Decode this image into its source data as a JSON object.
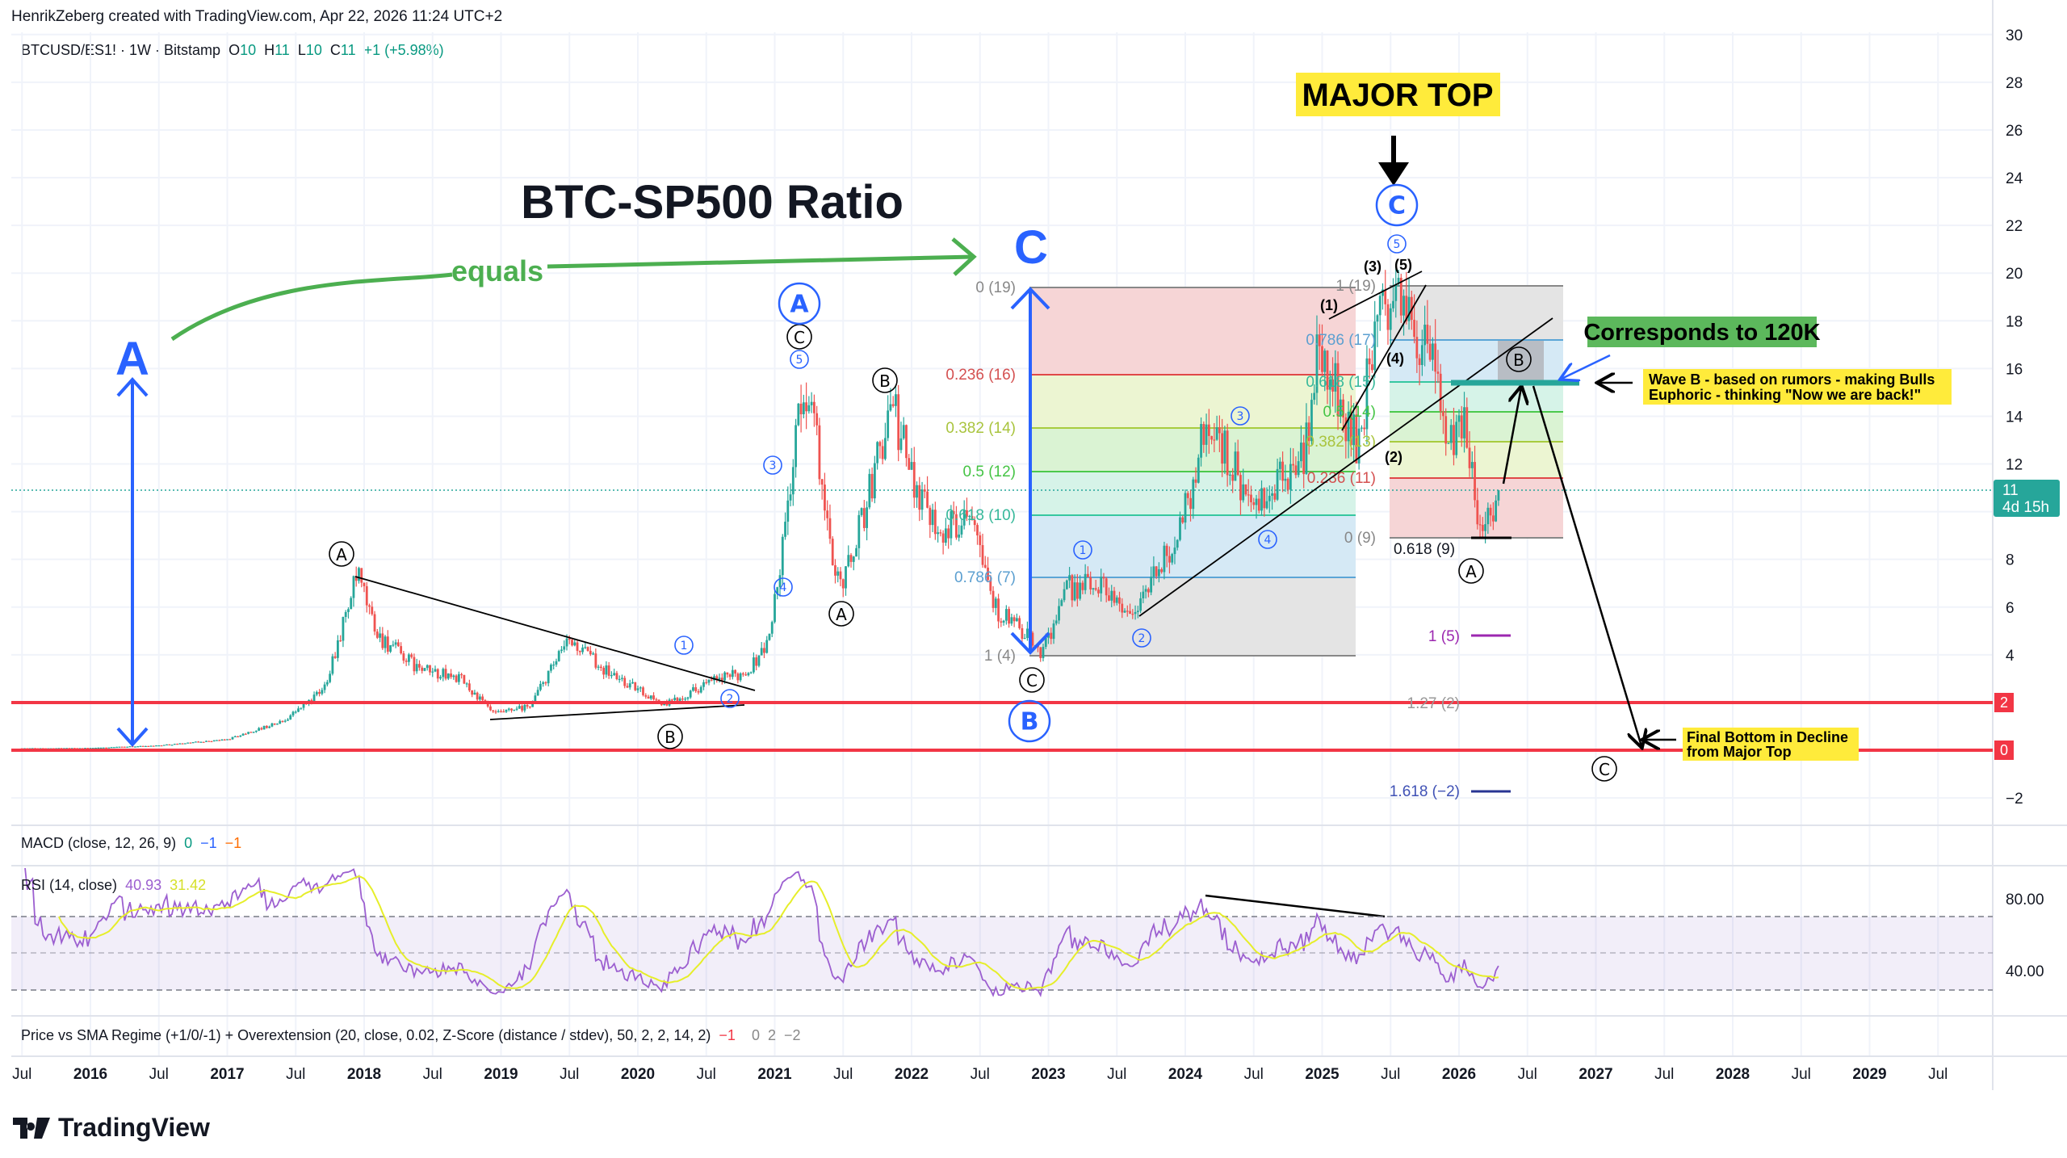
{
  "header": {
    "attribution": "HenrikZeberg created with TradingView.com, Apr 22, 2026 11:24 UTC+2"
  },
  "legend": {
    "symbol": "BTCUSD/ES1! · 1W · Bitstamp",
    "o_label": "O",
    "o": "10",
    "h_label": "H",
    "h": "11",
    "l_label": "L",
    "l": "10",
    "c_label": "C",
    "c": "11",
    "change": "+1 (+5.98%)"
  },
  "annotations": {
    "title": "BTC-SP500 Ratio",
    "equals": "equals",
    "big_a": "A",
    "big_c": "C",
    "major_top": "MAJOR TOP",
    "corresponds": "Corresponds to 120K",
    "wave_b_note_1": "Wave B - based on rumors - making Bulls",
    "wave_b_note_2": "Euphoric - thinking \"Now we are back!\"",
    "final_bottom_1": "Final Bottom in Decline",
    "final_bottom_2": "from Major Top",
    "sub_waves": [
      "(5)",
      "(3)",
      "(1)",
      "(4)",
      "(2)"
    ]
  },
  "waves": [
    "A",
    "B",
    "1",
    "2",
    "3",
    "4",
    "5",
    "C",
    "A",
    "B",
    "A",
    "C",
    "B",
    "1",
    "2",
    "3",
    "4",
    "C",
    "5",
    "B",
    "A",
    "C"
  ],
  "fib_left": [
    "0 (19)",
    "0.236 (16)",
    "0.382 (14)",
    "0.5 (12)",
    "0.618 (10)",
    "0.786 (7)",
    "1 (4)"
  ],
  "fib_right": [
    "1 (19)",
    "0.786 (17)",
    "0.618 (15)",
    "0.5 (14)",
    "0.382 (13)",
    "0.236 (11)",
    "0 (9)",
    "0.618 (9)"
  ],
  "extensions": [
    "1 (5)",
    "1.27 (2)",
    "1.618 (−2)"
  ],
  "price_axis": {
    "ticks": [
      "30",
      "28",
      "26",
      "24",
      "22",
      "20",
      "18",
      "16",
      "14",
      "12",
      "8",
      "6",
      "4",
      "−2"
    ],
    "tags": [
      "2",
      "0"
    ],
    "last_price": "11",
    "countdown": "4d 15h"
  },
  "time_axis": [
    "Jul",
    "2016",
    "Jul",
    "2017",
    "Jul",
    "2018",
    "Jul",
    "2019",
    "Jul",
    "2020",
    "Jul",
    "2021",
    "Jul",
    "2022",
    "Jul",
    "2023",
    "Jul",
    "2024",
    "Jul",
    "2025",
    "Jul",
    "2026",
    "Jul",
    "2027",
    "Jul",
    "2028",
    "Jul",
    "2029",
    "Jul"
  ],
  "macd": {
    "title": "MACD (close, 12, 26, 9)",
    "v1": "0",
    "v2": "−1",
    "v3": "−1"
  },
  "rsi": {
    "title": "RSI (14, close)",
    "value": "40.93",
    "sma": "31.42",
    "ticks": [
      "80.00",
      "40.00"
    ]
  },
  "regime": {
    "title": "Price vs SMA Regime (+1/0/-1) + Overextension (20, close, 0.02, Z-Score (distance / stdev), 50, 2, 2, 14, 2)",
    "v1": "−1",
    "v2": "0",
    "v3": "2",
    "v4": "−2"
  },
  "logo": {
    "text": "TradingView"
  },
  "colors": {
    "up": "#26a69a",
    "down": "#ef5350",
    "blue": "#2962ff",
    "green_note": "#5cb85c",
    "yellow_note": "#ffeb3b",
    "support": "#f23645",
    "rsi": "#9c5fd0",
    "rsi_sma": "#e6ee2a"
  },
  "chart_data": {
    "type": "candlestick",
    "title": "BTC-SP500 Ratio",
    "timeframe": "1W",
    "x_unit": "year",
    "ylim": [
      -3,
      30
    ],
    "horizontal_levels": [
      2,
      0
    ],
    "current_value": 11,
    "price_path": [
      [
        2015.5,
        0.08
      ],
      [
        2016.0,
        0.09
      ],
      [
        2016.5,
        0.2
      ],
      [
        2017.0,
        0.45
      ],
      [
        2017.4,
        1.2
      ],
      [
        2017.7,
        2.5
      ],
      [
        2017.95,
        7.3
      ],
      [
        2018.1,
        4.8
      ],
      [
        2018.4,
        3.4
      ],
      [
        2018.7,
        3.0
      ],
      [
        2018.95,
        1.5
      ],
      [
        2019.2,
        1.8
      ],
      [
        2019.5,
        4.6
      ],
      [
        2019.8,
        3.2
      ],
      [
        2020.2,
        1.9
      ],
      [
        2020.5,
        2.8
      ],
      [
        2020.8,
        3.3
      ],
      [
        2020.95,
        4.5
      ],
      [
        2021.05,
        8
      ],
      [
        2021.15,
        13
      ],
      [
        2021.25,
        15.5
      ],
      [
        2021.4,
        8.5
      ],
      [
        2021.5,
        7
      ],
      [
        2021.7,
        11
      ],
      [
        2021.85,
        14.6
      ],
      [
        2022.0,
        11.5
      ],
      [
        2022.25,
        9
      ],
      [
        2022.45,
        10.5
      ],
      [
        2022.6,
        6
      ],
      [
        2022.8,
        5
      ],
      [
        2022.95,
        4.1
      ],
      [
        2023.15,
        6.8
      ],
      [
        2023.4,
        7
      ],
      [
        2023.6,
        5.6
      ],
      [
        2023.9,
        8.5
      ],
      [
        2024.05,
        11
      ],
      [
        2024.15,
        13.8
      ],
      [
        2024.35,
        12
      ],
      [
        2024.5,
        9.8
      ],
      [
        2024.7,
        11.3
      ],
      [
        2024.88,
        12.5
      ],
      [
        2024.97,
        17
      ],
      [
        2025.1,
        15
      ],
      [
        2025.25,
        12.8
      ],
      [
        2025.4,
        17.5
      ],
      [
        2025.5,
        19.3
      ],
      [
        2025.65,
        18
      ],
      [
        2025.8,
        16
      ],
      [
        2025.95,
        12.5
      ],
      [
        2026.05,
        13.8
      ],
      [
        2026.15,
        9.4
      ],
      [
        2026.3,
        10.9
      ]
    ]
  }
}
